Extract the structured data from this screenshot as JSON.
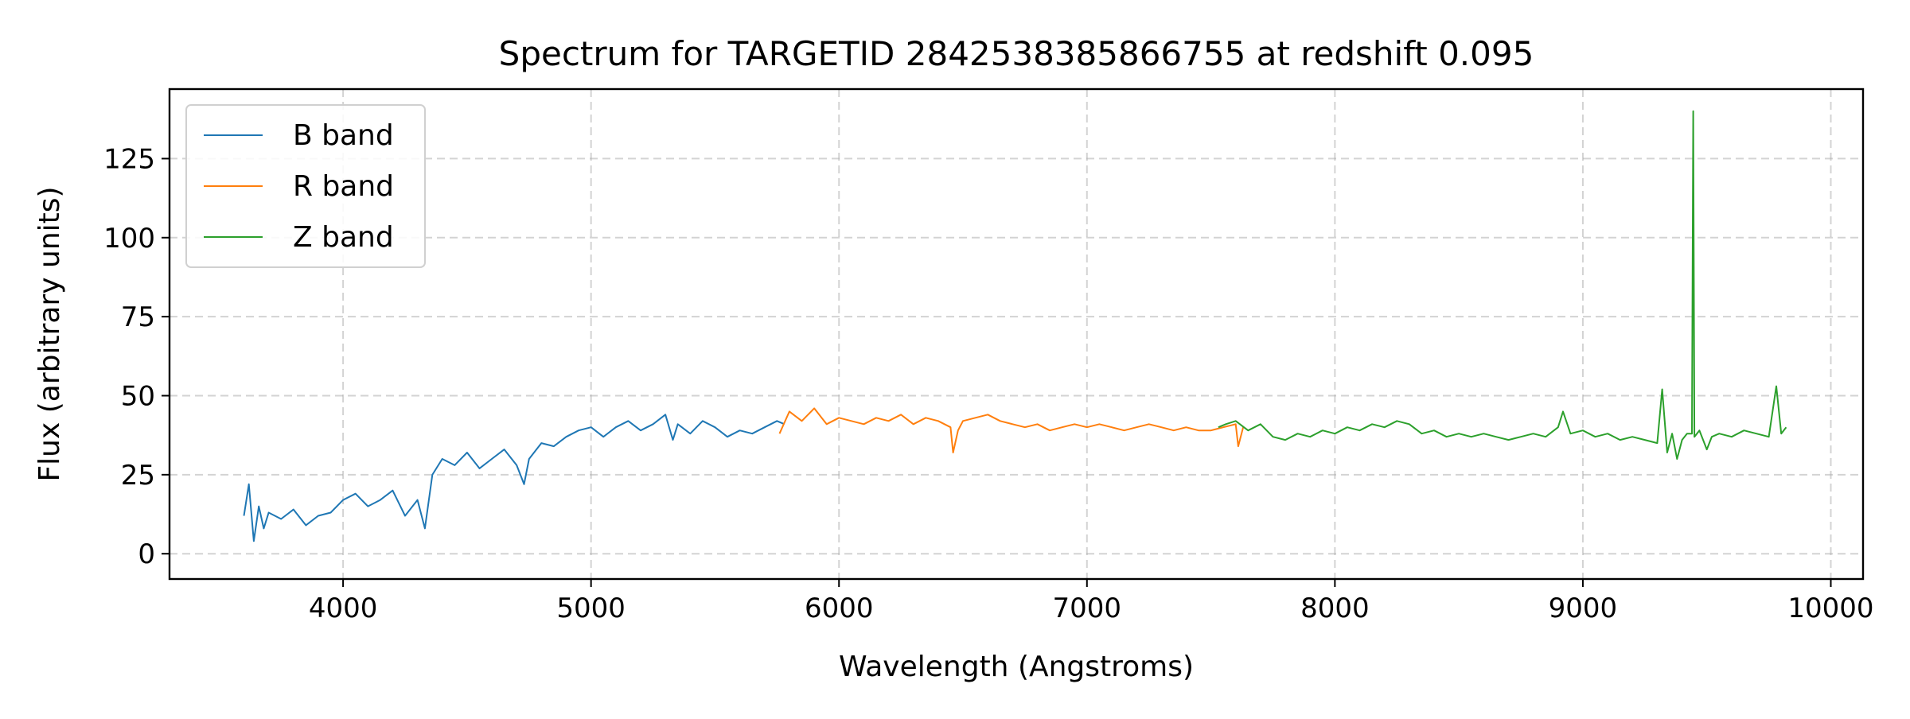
{
  "chart_data": {
    "type": "line",
    "title": "Spectrum for TARGETID 2842538385866755 at redshift 0.095",
    "xlabel": "Wavelength (Angstroms)",
    "ylabel": "Flux (arbitrary units)",
    "xlim": [
      3300,
      10130
    ],
    "ylim": [
      -8,
      147
    ],
    "xticks": [
      4000,
      5000,
      6000,
      7000,
      8000,
      9000,
      10000
    ],
    "yticks": [
      0,
      25,
      50,
      75,
      100,
      125
    ],
    "grid": true,
    "legend_position": "top-left",
    "series": [
      {
        "name": "B band",
        "color": "#1f77b4",
        "x": [
          3600,
          3620,
          3640,
          3660,
          3680,
          3700,
          3750,
          3800,
          3850,
          3900,
          3950,
          4000,
          4050,
          4100,
          4150,
          4200,
          4250,
          4300,
          4330,
          4360,
          4400,
          4450,
          4500,
          4550,
          4600,
          4650,
          4700,
          4730,
          4750,
          4800,
          4850,
          4900,
          4950,
          5000,
          5050,
          5100,
          5150,
          5200,
          5250,
          5300,
          5330,
          5350,
          5400,
          5450,
          5500,
          5550,
          5600,
          5650,
          5700,
          5750,
          5780
        ],
        "y": [
          12,
          22,
          4,
          15,
          8,
          13,
          11,
          14,
          9,
          12,
          13,
          17,
          19,
          15,
          17,
          20,
          12,
          17,
          8,
          25,
          30,
          28,
          32,
          27,
          30,
          33,
          28,
          22,
          30,
          35,
          34,
          37,
          39,
          40,
          37,
          40,
          42,
          39,
          41,
          44,
          36,
          41,
          38,
          42,
          40,
          37,
          39,
          38,
          40,
          42,
          41
        ]
      },
      {
        "name": "R band",
        "color": "#ff7f0e",
        "x": [
          5760,
          5800,
          5850,
          5900,
          5950,
          6000,
          6050,
          6100,
          6150,
          6200,
          6250,
          6300,
          6350,
          6400,
          6450,
          6460,
          6480,
          6500,
          6550,
          6600,
          6650,
          6700,
          6750,
          6800,
          6850,
          6900,
          6950,
          7000,
          7050,
          7100,
          7150,
          7200,
          7250,
          7300,
          7350,
          7400,
          7450,
          7500,
          7550,
          7600,
          7610,
          7630
        ],
        "y": [
          38,
          45,
          42,
          46,
          41,
          43,
          42,
          41,
          43,
          42,
          44,
          41,
          43,
          42,
          40,
          32,
          39,
          42,
          43,
          44,
          42,
          41,
          40,
          41,
          39,
          40,
          41,
          40,
          41,
          40,
          39,
          40,
          41,
          40,
          39,
          40,
          39,
          39,
          40,
          41,
          34,
          40
        ]
      },
      {
        "name": "Z band",
        "color": "#2ca02c",
        "x": [
          7530,
          7560,
          7600,
          7650,
          7700,
          7750,
          7800,
          7850,
          7900,
          7950,
          8000,
          8050,
          8100,
          8150,
          8200,
          8250,
          8300,
          8350,
          8400,
          8450,
          8500,
          8550,
          8600,
          8650,
          8700,
          8750,
          8800,
          8850,
          8900,
          8920,
          8950,
          9000,
          9050,
          9100,
          9150,
          9200,
          9250,
          9300,
          9320,
          9340,
          9360,
          9380,
          9400,
          9420,
          9440,
          9445,
          9450,
          9470,
          9500,
          9520,
          9550,
          9600,
          9650,
          9700,
          9750,
          9780,
          9800,
          9820
        ],
        "y": [
          40,
          41,
          42,
          39,
          41,
          37,
          36,
          38,
          37,
          39,
          38,
          40,
          39,
          41,
          40,
          42,
          41,
          38,
          39,
          37,
          38,
          37,
          38,
          37,
          36,
          37,
          38,
          37,
          40,
          45,
          38,
          39,
          37,
          38,
          36,
          37,
          36,
          35,
          52,
          32,
          38,
          30,
          36,
          38,
          38,
          140,
          37,
          39,
          33,
          37,
          38,
          37,
          39,
          38,
          37,
          53,
          38,
          40
        ]
      }
    ]
  }
}
